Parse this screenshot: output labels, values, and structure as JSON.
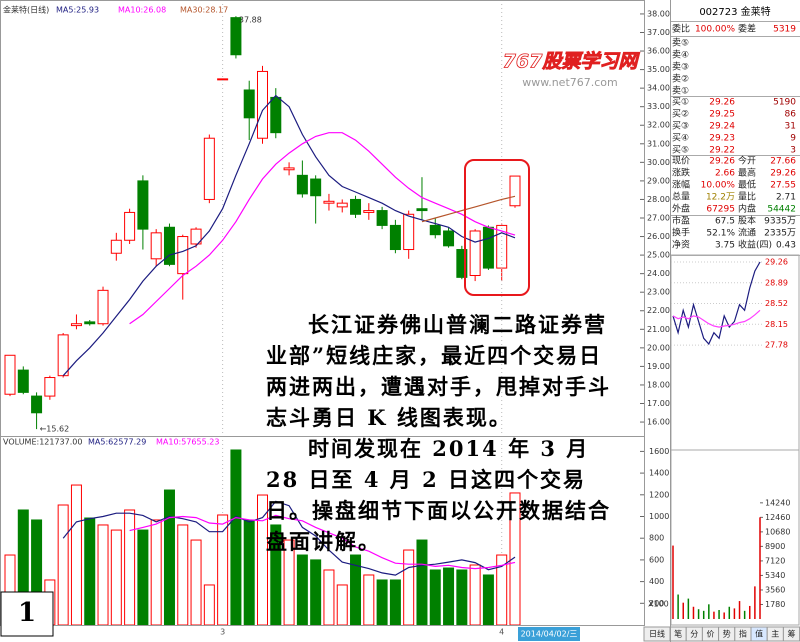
{
  "chart_data": [
    {
      "type": "candlestick",
      "title": "金莱特(日线)",
      "categories": [
        null,
        null,
        null,
        null,
        null,
        null,
        null,
        null,
        null,
        null,
        null,
        null,
        null,
        null,
        null,
        null,
        "3",
        null,
        null,
        null,
        null,
        null,
        null,
        null,
        null,
        null,
        null,
        null,
        null,
        null,
        null,
        null,
        null,
        null,
        null,
        null,
        null,
        "4",
        null
      ],
      "open": [
        17.5,
        18.8,
        17.4,
        17.4,
        18.5,
        21.2,
        21.4,
        21.3,
        25.1,
        25.8,
        29.0,
        24.8,
        26.5,
        24.0,
        25.6,
        28.0,
        34.5,
        37.8,
        33.9,
        31.3,
        33.5,
        29.6,
        29.3,
        29.1,
        27.8,
        27.6,
        28.0,
        27.3,
        27.4,
        26.6,
        25.3,
        27.5,
        26.6,
        26.3,
        25.3,
        23.9,
        26.5,
        24.3,
        27.66
      ],
      "high": [
        19.6,
        19.0,
        17.6,
        18.5,
        20.8,
        21.8,
        21.5,
        23.3,
        26.2,
        27.5,
        29.3,
        26.4,
        26.7,
        26.1,
        26.5,
        31.5,
        34.5,
        37.88,
        34.4,
        35.2,
        34.0,
        30.0,
        30.1,
        29.3,
        28.3,
        28.0,
        28.2,
        27.8,
        27.6,
        26.9,
        27.4,
        29.2,
        27.0,
        26.5,
        25.5,
        26.4,
        26.6,
        26.7,
        29.26
      ],
      "low": [
        17.4,
        17.5,
        15.62,
        17.2,
        18.4,
        21.0,
        21.2,
        21.2,
        24.7,
        25.6,
        25.3,
        24.4,
        24.4,
        22.6,
        25.4,
        27.8,
        34.5,
        35.6,
        31.2,
        31.0,
        31.3,
        29.3,
        28.1,
        26.7,
        27.4,
        27.3,
        27.0,
        26.9,
        26.4,
        25.1,
        24.8,
        26.9,
        25.9,
        25.4,
        23.7,
        23.6,
        24.2,
        23.6,
        27.55
      ],
      "close": [
        19.6,
        17.6,
        16.5,
        18.4,
        20.7,
        21.3,
        21.3,
        23.1,
        25.8,
        27.3,
        26.4,
        26.2,
        24.5,
        26.0,
        26.4,
        31.3,
        34.5,
        35.8,
        32.4,
        34.9,
        31.6,
        29.7,
        28.3,
        28.2,
        27.9,
        27.8,
        27.2,
        27.4,
        26.6,
        25.3,
        27.2,
        27.4,
        26.1,
        25.5,
        23.8,
        26.3,
        24.3,
        26.6,
        29.26
      ],
      "up_color": "#ff0000",
      "down_color": "#008000",
      "series": [
        {
          "name": "MA5:25.93",
          "color": "#1c1c80",
          "values": [
            null,
            null,
            null,
            null,
            18.5,
            19.3,
            20.0,
            20.8,
            21.7,
            22.6,
            23.6,
            24.4,
            25.0,
            25.2,
            25.5,
            26.3,
            27.5,
            29.3,
            31.0,
            32.8,
            33.6,
            33.0,
            31.5,
            30.3,
            29.3,
            28.7,
            28.4,
            28.1,
            27.8,
            27.4,
            27.1,
            26.9,
            26.7,
            26.5,
            26.0,
            25.7,
            25.9,
            26.2,
            25.93
          ]
        },
        {
          "name": "MA10:26.08",
          "color": "#ff00ff",
          "values": [
            null,
            null,
            null,
            null,
            null,
            null,
            null,
            null,
            null,
            21.3,
            21.8,
            22.5,
            23.2,
            23.9,
            24.4,
            25.0,
            25.8,
            26.8,
            28.0,
            29.1,
            29.9,
            30.5,
            31.0,
            31.4,
            31.6,
            31.6,
            31.2,
            30.6,
            29.9,
            29.2,
            28.6,
            28.1,
            27.8,
            27.5,
            27.2,
            26.8,
            26.5,
            26.3,
            26.08
          ]
        },
        {
          "name": "MA30:28.17",
          "color": "#b5552b",
          "values": [
            null,
            null,
            null,
            null,
            null,
            null,
            null,
            null,
            null,
            null,
            null,
            null,
            null,
            null,
            null,
            null,
            null,
            null,
            null,
            null,
            null,
            null,
            null,
            null,
            null,
            null,
            null,
            null,
            null,
            null,
            null,
            26.8,
            27.0,
            27.2,
            27.4,
            27.6,
            27.8,
            28.0,
            28.17
          ]
        }
      ],
      "ylim": [
        15.41,
        38.32
      ],
      "yticks": [
        {
          "value": 38,
          "label": "38.00"
        },
        {
          "value": 37,
          "label": "37.00"
        },
        {
          "value": 36,
          "label": "36.00"
        },
        {
          "value": 35,
          "label": "35.00"
        },
        {
          "value": 34,
          "label": "34.00"
        },
        {
          "value": 33,
          "label": "33.00"
        },
        {
          "value": 32,
          "label": "32.00"
        },
        {
          "value": 31,
          "label": "31.00"
        },
        {
          "value": 30,
          "label": "30.00"
        },
        {
          "value": 29,
          "label": "29.00"
        },
        {
          "value": 28,
          "label": "28.00"
        },
        {
          "value": 27,
          "label": "27.00"
        },
        {
          "value": 26,
          "label": "26.00"
        },
        {
          "value": 25,
          "label": "25.00"
        },
        {
          "value": 24,
          "label": "24.00"
        },
        {
          "value": 23,
          "label": "23.00"
        },
        {
          "value": 22,
          "label": "22.00"
        },
        {
          "value": 21,
          "label": "21.00"
        },
        {
          "value": 20,
          "label": "20.00"
        },
        {
          "value": 19,
          "label": "19.00"
        },
        {
          "value": 18,
          "label": "18.00"
        },
        {
          "value": 17,
          "label": "17.00"
        },
        {
          "value": 16,
          "label": "16.00"
        }
      ],
      "annotations": [
        {
          "text": "37.88",
          "value": 37.88,
          "index": 17
        },
        {
          "text": "←15.62",
          "value": 15.62,
          "index": 2
        }
      ]
    },
    {
      "type": "bar",
      "title": "VOLUME:121737.00",
      "values": [
        645,
        1060,
        968,
        415,
        1106,
        1290,
        986,
        922,
        875,
        1060,
        875,
        968,
        1244,
        922,
        783,
        369,
        1014,
        1613,
        968,
        1198,
        922,
        783,
        645,
        600,
        507,
        369,
        645,
        461,
        415,
        415,
        691,
        783,
        507,
        525,
        507,
        553,
        461,
        645,
        1217
      ],
      "series": [
        {
          "name": "MA5:62577.29",
          "color": "#1c1c80",
          "values": [
            null,
            null,
            null,
            null,
            800,
            950,
            980,
            1000,
            1030,
            1030,
            1010,
            950,
            1000,
            980,
            950,
            860,
            860,
            1000,
            950,
            990,
            1140,
            1100,
            900,
            820,
            690,
            580,
            550,
            520,
            480,
            460,
            530,
            550,
            560,
            580,
            600,
            575,
            510,
            540,
            625.7729
          ]
        },
        {
          "name": "MA10:57655.23",
          "color": "#ff00ff",
          "values": [
            null,
            null,
            null,
            null,
            null,
            null,
            null,
            null,
            null,
            870,
            900,
            930,
            990,
            1000,
            990,
            940,
            930,
            990,
            970,
            960,
            1010,
            980,
            960,
            900,
            850,
            800,
            720,
            680,
            620,
            570,
            560,
            560,
            540,
            550,
            530,
            520,
            530,
            550,
            576.5523
          ]
        }
      ],
      "ylim": [
        0,
        1659
      ],
      "yticks": [
        1600,
        1400,
        1200,
        1000,
        800,
        600,
        400,
        200
      ],
      "unit_label": "X100"
    },
    {
      "type": "line",
      "series": [
        {
          "name": null,
          "color": "#1c1c80",
          "values": [
            28.3,
            28.0,
            28.4,
            28.1,
            28.5,
            28.2,
            27.9,
            27.8,
            28.0,
            27.9,
            28.3,
            28.1,
            28.2,
            28.5,
            28.4,
            28.8,
            29.1,
            29.26
          ]
        },
        {
          "name": null,
          "color": "#ff40ff",
          "values": [
            28.3,
            28.25,
            28.28,
            28.25,
            28.3,
            28.28,
            28.22,
            28.16,
            28.12,
            28.1,
            28.12,
            28.13,
            28.15,
            28.18,
            28.2,
            28.25,
            28.32,
            28.4
          ]
        }
      ],
      "ylim": [
        26.0,
        29.26
      ],
      "yticks": [
        29.26,
        28.89,
        28.52,
        28.15,
        27.78
      ],
      "volume": {
        "values": [
          9000,
          3000,
          2000,
          2500,
          1500,
          1200,
          1000,
          1800,
          900,
          1100,
          800,
          1500,
          1300,
          2200,
          1000,
          1600,
          4000,
          12460
        ],
        "ylim": [
          0,
          20470
        ],
        "yticks": [
          14240,
          12460,
          10680,
          8900,
          7120,
          5340,
          3560,
          1780
        ]
      }
    }
  ],
  "quote": {
    "title": "002723 金莱特",
    "ratio": [
      "委比",
      "100.00%",
      "委差",
      "5319"
    ],
    "asks": [
      "卖⑤",
      "卖④",
      "卖③",
      "卖②",
      "卖①"
    ],
    "bids": [
      [
        "买①",
        "29.26",
        "5190"
      ],
      [
        "买②",
        "29.25",
        "86"
      ],
      [
        "买③",
        "29.24",
        "31"
      ],
      [
        "买④",
        "29.23",
        "9"
      ],
      [
        "买⑤",
        "29.22",
        "3"
      ]
    ],
    "stats": [
      [
        "现价",
        "29.26",
        "今开",
        "27.66"
      ],
      [
        "涨跌",
        "2.66",
        "最高",
        "29.26"
      ],
      [
        "涨幅",
        "10.00%",
        "最低",
        "27.55"
      ],
      [
        "总量",
        "12.2万",
        "量比",
        "2.71"
      ],
      [
        "外盘",
        "67295",
        "内盘",
        "54442"
      ],
      [
        "市盈",
        "67.5",
        "股本",
        "9335万"
      ],
      [
        "换手",
        "52.1%",
        "流通",
        "2335万"
      ],
      [
        "净资",
        "3.75",
        "收益(四)",
        "0.43"
      ]
    ]
  },
  "article": {
    "paragraphs": [
      "长江证券佛山普澜二路证券营业部”短线庄家，最近四个交易日两进两出，遭遇对手，甩掉对手斗志斗勇日 K 线图表现。",
      "时间发现在 2014 年 3 月 28 日至 4 月 2 日这四个交易日。操盘细节下面以公开数据结合盘面讲解。"
    ]
  },
  "watermark": {
    "title": "767股票学习网",
    "url": "www.net767.com"
  },
  "figure_number": "1",
  "date_label": "2014/04/02/三",
  "tabs": [
    "日线",
    "笔",
    "分",
    "价",
    "势",
    "指",
    "值",
    "主",
    "筹"
  ]
}
